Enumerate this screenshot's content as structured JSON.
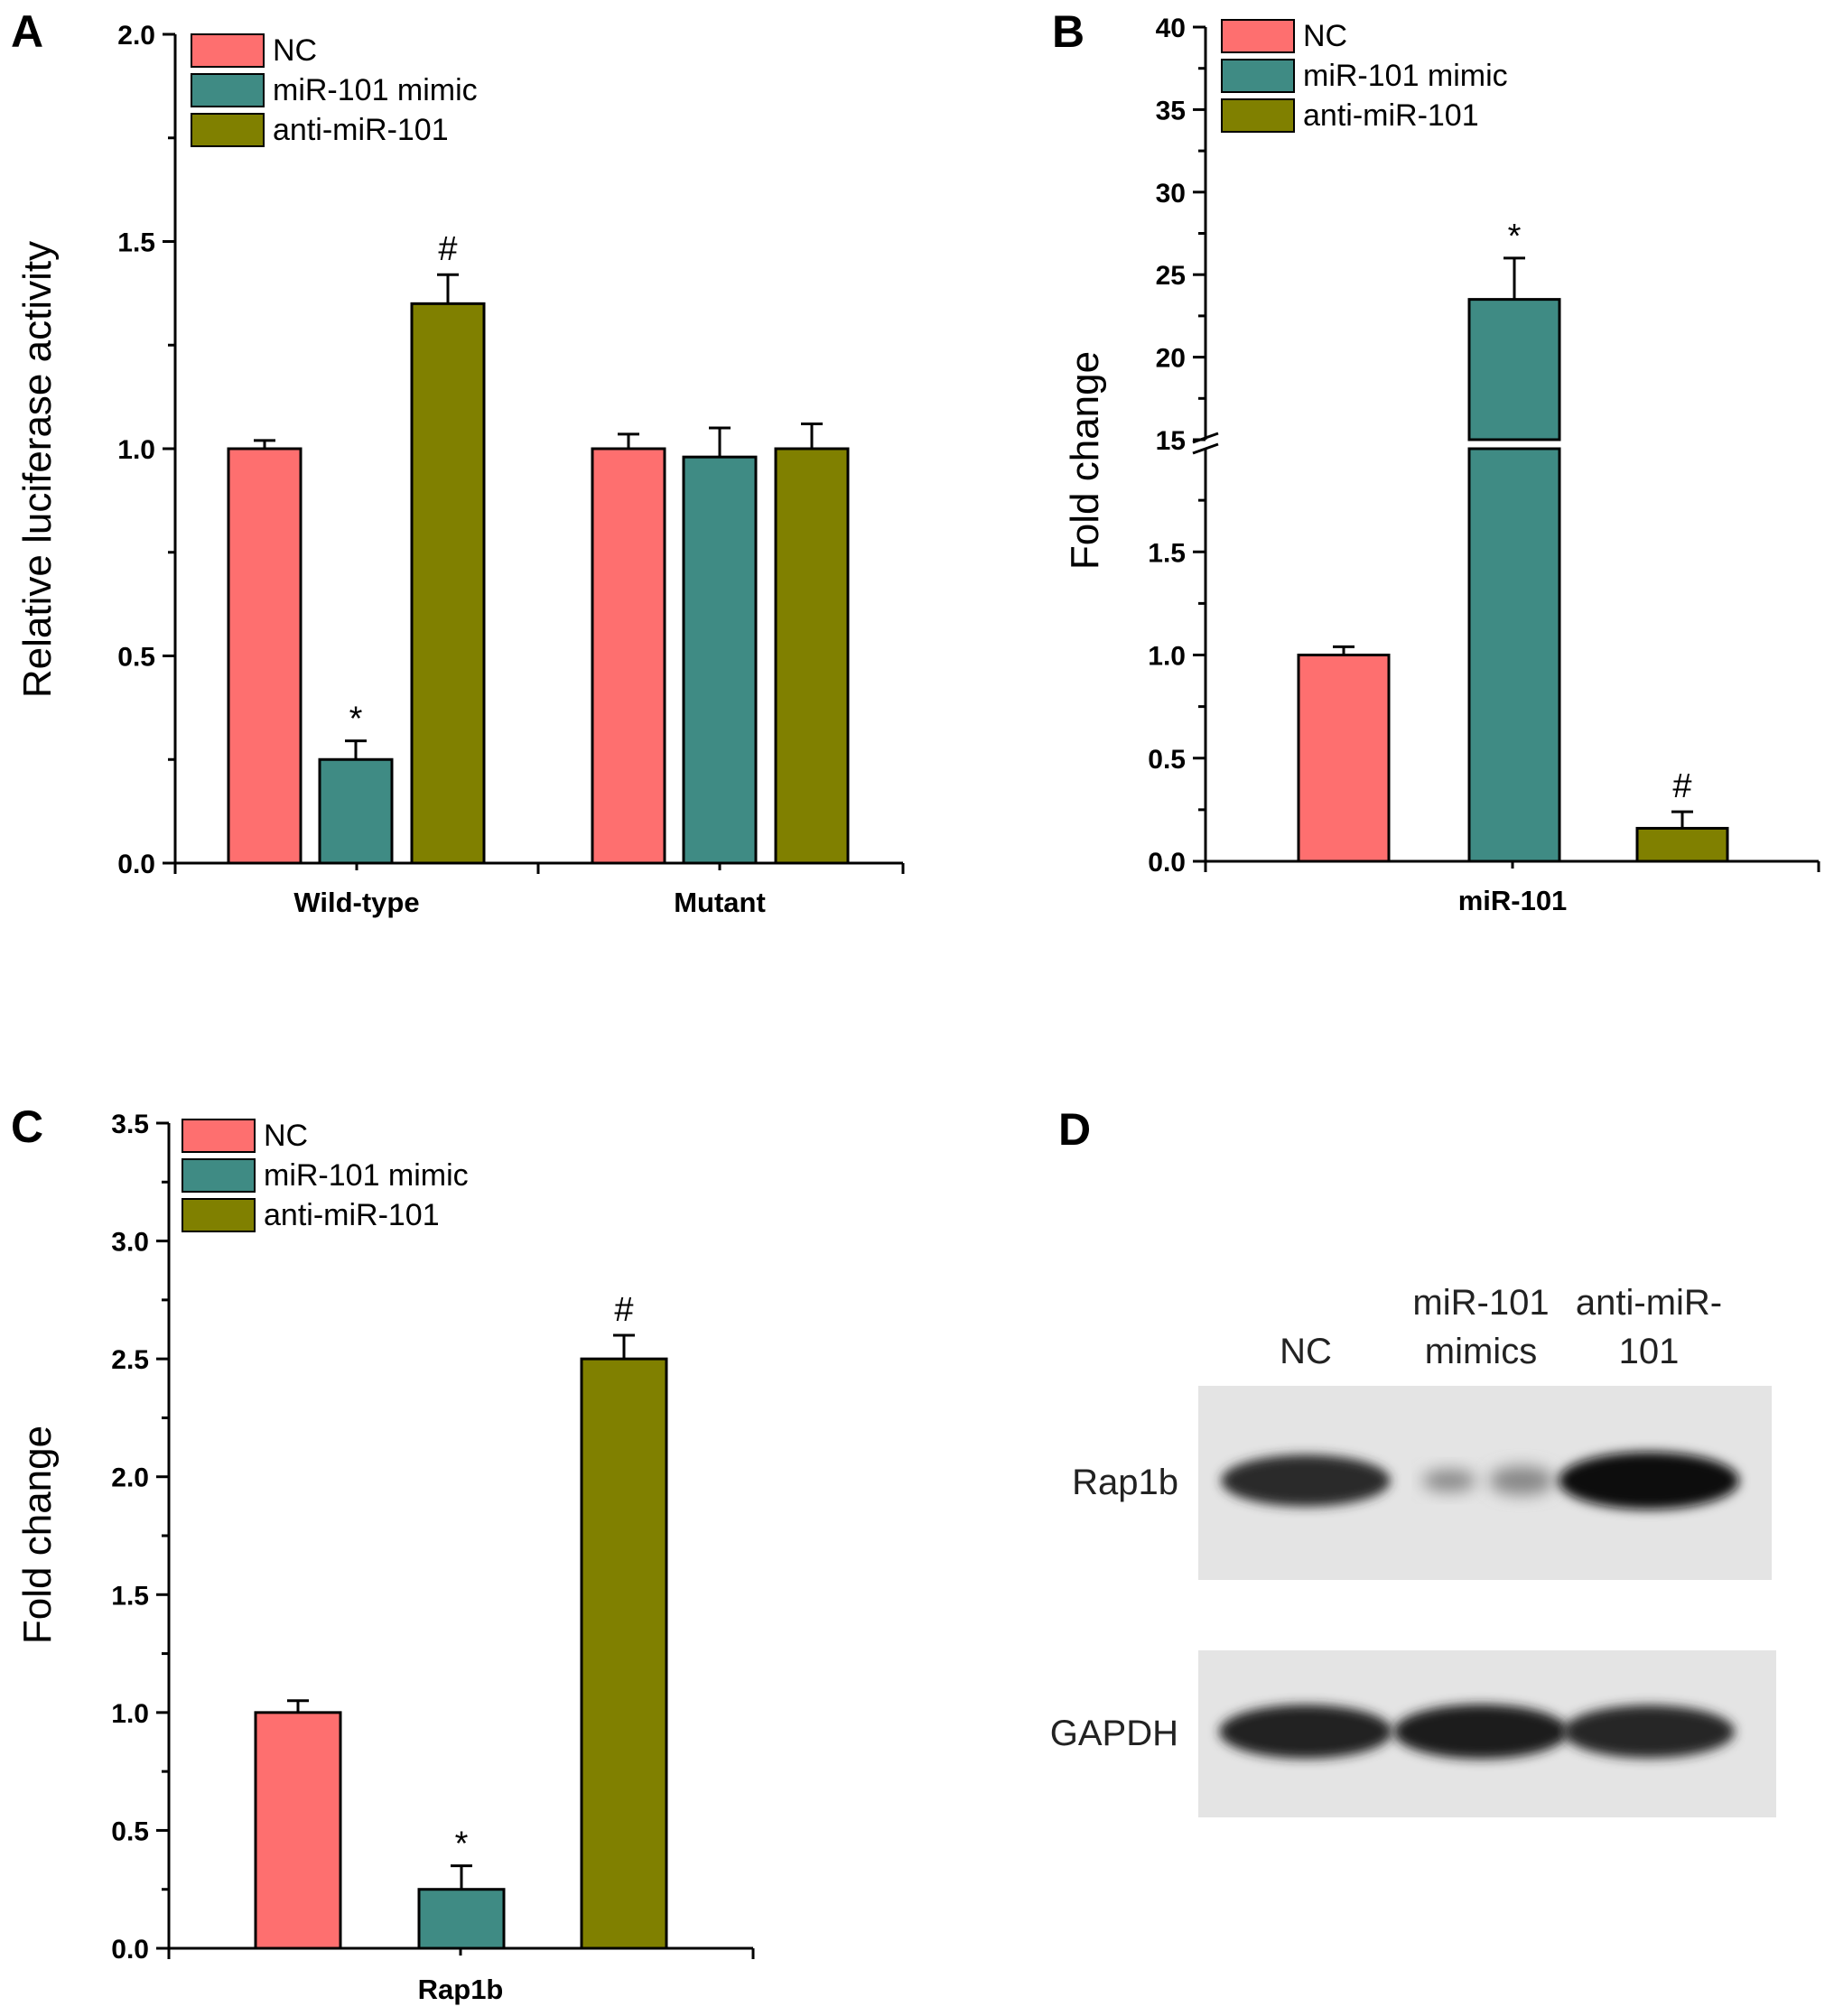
{
  "colors": {
    "NC": "#fe6f6f",
    "miR-101 mimic": "#3f8b84",
    "anti-miR-101": "#808000"
  },
  "chart_data": [
    {
      "panel": "A",
      "type": "bar",
      "ylabel": "Relative luciferase activity",
      "ylim": [
        0,
        2.0
      ],
      "yticks": [
        "0.0",
        "0.5",
        "1.0",
        "1.5",
        "2.0"
      ],
      "legend": {
        "placement": "top-left",
        "entries": [
          "NC",
          "miR-101 mimic",
          "anti-miR-101"
        ]
      },
      "categories": [
        "Wild-type",
        "Mutant"
      ],
      "series": [
        {
          "name": "NC",
          "values": [
            1.0,
            1.0
          ],
          "errors": [
            0.02,
            0.035
          ]
        },
        {
          "name": "miR-101 mimic",
          "values": [
            0.25,
            0.98
          ],
          "errors": [
            0.045,
            0.07
          ]
        },
        {
          "name": "anti-miR-101",
          "values": [
            1.35,
            1.0
          ],
          "errors": [
            0.07,
            0.06
          ]
        }
      ],
      "annotations": [
        {
          "category": "Wild-type",
          "series": "miR-101 mimic",
          "text": "*"
        },
        {
          "category": "Wild-type",
          "series": "anti-miR-101",
          "text": "#"
        }
      ]
    },
    {
      "panel": "B",
      "type": "bar",
      "ylabel": "Fold change",
      "axis_break": [
        2.0,
        15
      ],
      "ylim_lower": [
        0,
        2.0
      ],
      "ylim_upper": [
        15,
        40
      ],
      "yticks_lower": [
        "0.0",
        "0.5",
        "1.0",
        "1.5"
      ],
      "yticks_upper": [
        "15",
        "20",
        "25",
        "30",
        "35",
        "40"
      ],
      "legend": {
        "placement": "top-left",
        "entries": [
          "NC",
          "miR-101 mimic",
          "anti-miR-101"
        ]
      },
      "categories": [
        "miR-101"
      ],
      "series": [
        {
          "name": "NC",
          "values": [
            1.0
          ],
          "errors": [
            0.04
          ]
        },
        {
          "name": "miR-101 mimic",
          "values": [
            23.5
          ],
          "errors": [
            2.5
          ]
        },
        {
          "name": "anti-miR-101",
          "values": [
            0.16
          ],
          "errors": [
            0.08
          ]
        }
      ],
      "annotations": [
        {
          "category": "miR-101",
          "series": "miR-101 mimic",
          "text": "*"
        },
        {
          "category": "miR-101",
          "series": "anti-miR-101",
          "text": "#"
        }
      ]
    },
    {
      "panel": "C",
      "type": "bar",
      "ylabel": "Fold change",
      "ylim": [
        0,
        3.5
      ],
      "yticks": [
        "0.0",
        "0.5",
        "1.0",
        "1.5",
        "2.0",
        "2.5",
        "3.0",
        "3.5"
      ],
      "legend": {
        "placement": "top-left",
        "entries": [
          "NC",
          "miR-101 mimic",
          "anti-miR-101"
        ]
      },
      "categories": [
        "Rap1b"
      ],
      "series": [
        {
          "name": "NC",
          "values": [
            1.0
          ],
          "errors": [
            0.05
          ]
        },
        {
          "name": "miR-101 mimic",
          "values": [
            0.25
          ],
          "errors": [
            0.1
          ]
        },
        {
          "name": "anti-miR-101",
          "values": [
            2.5
          ],
          "errors": [
            0.1
          ]
        }
      ],
      "annotations": [
        {
          "category": "Rap1b",
          "series": "miR-101 mimic",
          "text": "*"
        },
        {
          "category": "Rap1b",
          "series": "anti-miR-101",
          "text": "#"
        }
      ]
    }
  ],
  "blot": {
    "panel": "D",
    "lanes": [
      {
        "line1": "NC",
        "line2": ""
      },
      {
        "line1": "miR-101",
        "line2": "mimics"
      },
      {
        "line1": "anti-miR-",
        "line2": "101"
      }
    ],
    "rows": [
      {
        "label": "Rap1b",
        "band_intensity": [
          0.85,
          0.35,
          1.0
        ]
      },
      {
        "label": "GAPDH",
        "band_intensity": [
          0.9,
          0.92,
          0.88
        ]
      }
    ]
  }
}
